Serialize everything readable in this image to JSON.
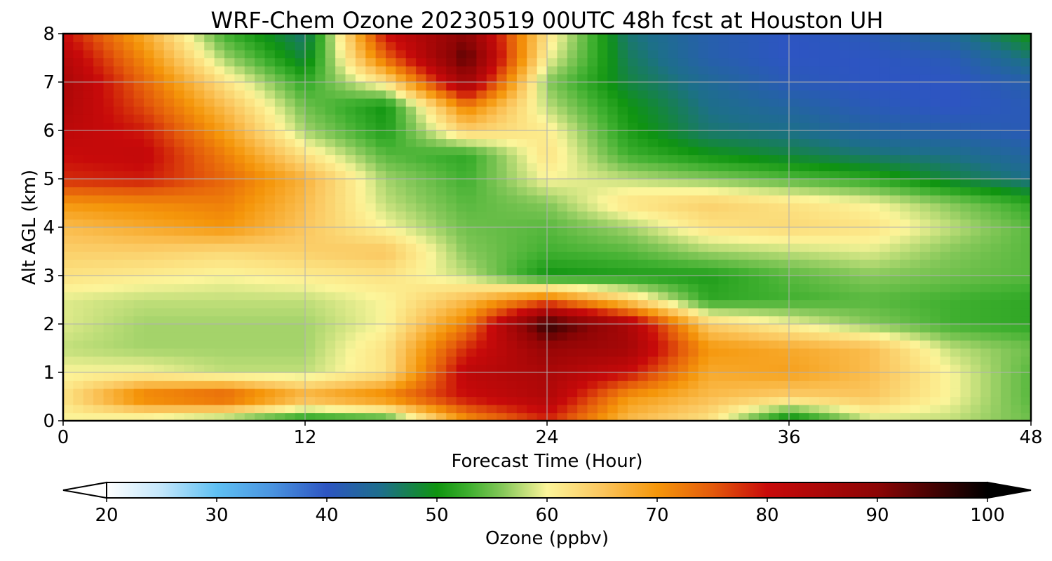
{
  "chart_data": {
    "type": "heatmap",
    "title": "WRF-Chem Ozone  20230519 00UTC 48h fcst at Houston UH",
    "xlabel": "Forecast Time (Hour)",
    "ylabel": "Alt AGL (km)",
    "xlim": [
      0,
      48
    ],
    "ylim": [
      0,
      8
    ],
    "xticks": [
      "0",
      "12",
      "24",
      "36",
      "48"
    ],
    "yticks": [
      "0",
      "1",
      "2",
      "3",
      "4",
      "5",
      "6",
      "7",
      "8"
    ],
    "grid": true,
    "colorbar": {
      "label": "Ozone  (ppbv)",
      "min": 20,
      "max": 100,
      "ticks": [
        "20",
        "30",
        "40",
        "50",
        "60",
        "70",
        "80",
        "90",
        "100"
      ],
      "extend": "both",
      "stops": [
        {
          "v": 20,
          "c": "#ffffff"
        },
        {
          "v": 25,
          "c": "#c2e6fb"
        },
        {
          "v": 30,
          "c": "#5fc0f3"
        },
        {
          "v": 35,
          "c": "#4a94e0"
        },
        {
          "v": 40,
          "c": "#2d55c2"
        },
        {
          "v": 45,
          "c": "#1d6f8a"
        },
        {
          "v": 50,
          "c": "#0f9410"
        },
        {
          "v": 53,
          "c": "#40b030"
        },
        {
          "v": 56,
          "c": "#86c85a"
        },
        {
          "v": 60,
          "c": "#fcf59a"
        },
        {
          "v": 65,
          "c": "#fbc65e"
        },
        {
          "v": 70,
          "c": "#f5960a"
        },
        {
          "v": 75,
          "c": "#e45a0b"
        },
        {
          "v": 80,
          "c": "#c80a0a"
        },
        {
          "v": 90,
          "c": "#8c0505"
        },
        {
          "v": 100,
          "c": "#000000"
        }
      ]
    },
    "hours": [
      0,
      4,
      8,
      12,
      16,
      20,
      24,
      28,
      32,
      36,
      40,
      44,
      48
    ],
    "altitudes_km": [
      0,
      0.5,
      1,
      1.5,
      2,
      2.5,
      3,
      3.5,
      4,
      4.5,
      5,
      5.5,
      6,
      6.5,
      7,
      7.5,
      8
    ],
    "ozone_ppbv": [
      [
        60,
        58,
        55,
        50,
        52,
        70,
        78,
        66,
        62,
        48,
        58,
        58,
        55
      ],
      [
        62,
        73,
        76,
        68,
        72,
        80,
        84,
        70,
        66,
        64,
        65,
        60,
        54
      ],
      [
        60,
        60,
        58,
        58,
        62,
        82,
        85,
        80,
        68,
        69,
        66,
        60,
        54
      ],
      [
        58,
        57,
        57,
        57,
        62,
        78,
        88,
        86,
        70,
        68,
        66,
        58,
        55
      ],
      [
        59,
        57,
        57,
        57,
        60,
        72,
        97,
        85,
        64,
        60,
        56,
        53,
        52
      ],
      [
        59,
        58,
        58,
        58,
        60,
        66,
        74,
        64,
        52,
        53,
        54,
        53,
        52
      ],
      [
        62,
        61,
        60,
        61,
        62,
        58,
        50,
        51,
        51,
        54,
        56,
        55,
        54
      ],
      [
        64,
        64,
        63,
        64,
        65,
        56,
        53,
        54,
        57,
        58,
        59,
        56,
        54
      ],
      [
        66,
        68,
        70,
        65,
        60,
        55,
        54,
        57,
        62,
        63,
        62,
        58,
        54
      ],
      [
        70,
        71,
        72,
        66,
        58,
        54,
        56,
        62,
        64,
        62,
        60,
        56,
        52
      ],
      [
        78,
        79,
        74,
        67,
        57,
        53,
        60,
        58,
        56,
        54,
        52,
        48,
        45
      ],
      [
        80,
        81,
        72,
        62,
        54,
        52,
        62,
        53,
        50,
        48,
        46,
        45,
        43
      ],
      [
        82,
        79,
        69,
        57,
        51,
        64,
        61,
        51,
        46,
        45,
        43,
        42,
        41
      ],
      [
        84,
        76,
        66,
        55,
        50,
        72,
        58,
        50,
        45,
        43,
        41,
        40,
        41
      ],
      [
        85,
        74,
        62,
        52,
        62,
        87,
        56,
        48,
        44,
        41,
        40,
        40,
        42
      ],
      [
        83,
        71,
        57,
        48,
        74,
        94,
        60,
        47,
        42,
        40,
        40,
        41,
        46
      ],
      [
        80,
        68,
        53,
        46,
        80,
        90,
        62,
        46,
        42,
        40,
        41,
        44,
        50
      ]
    ]
  }
}
